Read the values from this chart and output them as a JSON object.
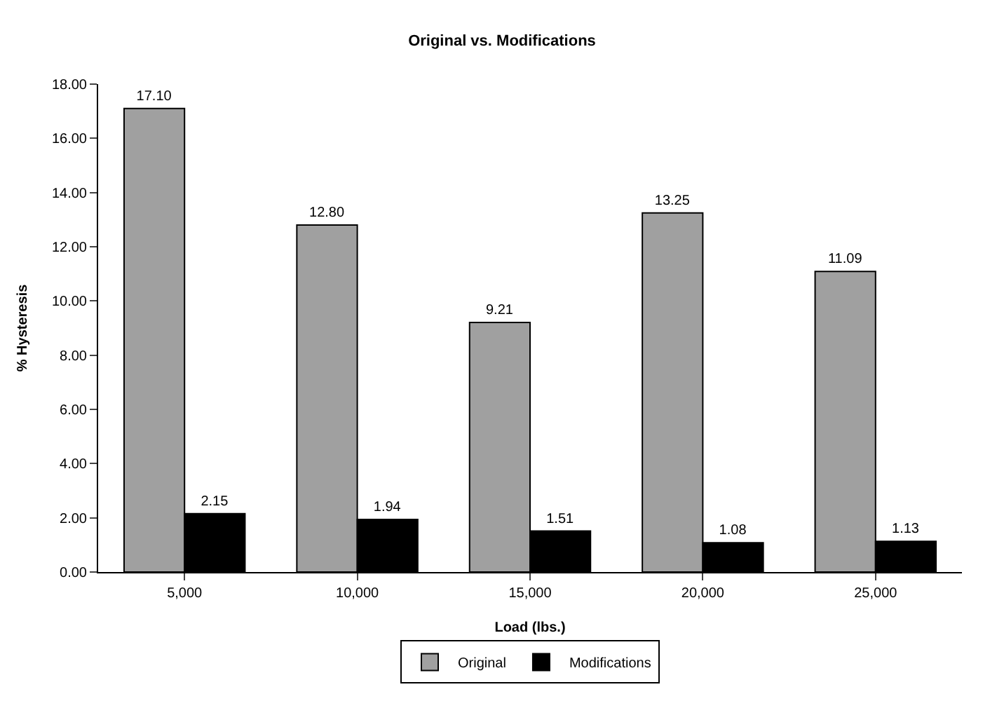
{
  "chart_data": {
    "type": "bar",
    "title": "Original vs. Modifications",
    "xlabel": "Load (lbs.)",
    "ylabel": "% Hysteresis",
    "categories": [
      "5,000",
      "10,000",
      "15,000",
      "20,000",
      "25,000"
    ],
    "series": [
      {
        "name": "Original",
        "color": "#a0a0a0",
        "values": [
          17.1,
          12.8,
          9.21,
          13.25,
          11.09
        ],
        "value_labels": [
          "17.10",
          "12.80",
          "9.21",
          "13.25",
          "11.09"
        ]
      },
      {
        "name": "Modifications",
        "color": "#000000",
        "values": [
          2.15,
          1.94,
          1.51,
          1.08,
          1.13
        ],
        "value_labels": [
          "2.15",
          "1.94",
          "1.51",
          "1.08",
          "1.13"
        ]
      }
    ],
    "ylim": [
      0,
      18
    ],
    "yticks": [
      {
        "value": 0,
        "label": "0.00"
      },
      {
        "value": 2,
        "label": "2.00"
      },
      {
        "value": 4,
        "label": "4.00"
      },
      {
        "value": 6,
        "label": "6.00"
      },
      {
        "value": 8,
        "label": "8.00"
      },
      {
        "value": 10,
        "label": "10.00"
      },
      {
        "value": 12,
        "label": "12.00"
      },
      {
        "value": 14,
        "label": "14.00"
      },
      {
        "value": 16,
        "label": "16.00"
      },
      {
        "value": 18,
        "label": "18.00"
      }
    ],
    "grid": false,
    "legend": "bottom"
  }
}
